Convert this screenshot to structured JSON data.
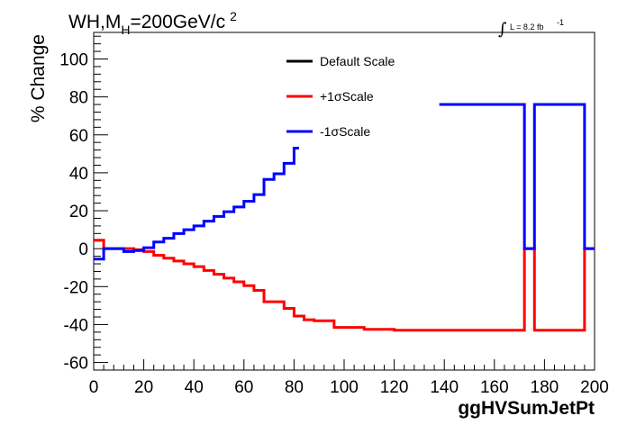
{
  "chart_data": {
    "type": "line",
    "title": {
      "prefix": "WH,M",
      "subscript": "H",
      "value": "=200GeV/c",
      "superscript": "2"
    },
    "lumi_label": "L = 8.2 fb",
    "lumi_exponent": "-1",
    "xlabel": "ggHVSumJetPt",
    "ylabel": "% Change",
    "xlim": [
      0,
      200
    ],
    "ylim": [
      -64,
      114
    ],
    "xticks": [
      0,
      20,
      40,
      60,
      80,
      100,
      120,
      140,
      160,
      180,
      200
    ],
    "yticks": [
      -60,
      -40,
      -20,
      0,
      20,
      40,
      60,
      80,
      100
    ],
    "legend_position": "top-center",
    "series": [
      {
        "name": "Default Scale",
        "color": "#000000",
        "bins": []
      },
      {
        "name": "+1σScale",
        "color": "#ff0000",
        "bins": [
          [
            0,
            4,
            4.5
          ],
          [
            4,
            8,
            0
          ],
          [
            8,
            12,
            0
          ],
          [
            12,
            16,
            0
          ],
          [
            16,
            20,
            -0.5
          ],
          [
            20,
            24,
            -1.5
          ],
          [
            24,
            28,
            -3.5
          ],
          [
            28,
            32,
            -5
          ],
          [
            32,
            36,
            -6.5
          ],
          [
            36,
            40,
            -8
          ],
          [
            40,
            44,
            -9.5
          ],
          [
            44,
            48,
            -11.5
          ],
          [
            48,
            52,
            -13.5
          ],
          [
            52,
            56,
            -15.5
          ],
          [
            56,
            60,
            -17.5
          ],
          [
            60,
            64,
            -19.5
          ],
          [
            64,
            68,
            -22
          ],
          [
            68,
            72,
            -28
          ],
          [
            72,
            76,
            -28
          ],
          [
            76,
            80,
            -31.5
          ],
          [
            80,
            84,
            -35.5
          ],
          [
            84,
            88,
            -37.5
          ],
          [
            88,
            92,
            -38
          ],
          [
            92,
            96,
            -38
          ],
          [
            96,
            100,
            -41.5
          ],
          [
            100,
            108,
            -41.5
          ],
          [
            108,
            112,
            -42.5
          ],
          [
            112,
            120,
            -42.5
          ],
          [
            120,
            172,
            -43
          ],
          [
            172,
            176,
            0
          ],
          [
            176,
            196,
            -43
          ],
          [
            196,
            200,
            0
          ]
        ]
      },
      {
        "name": "-1σScale",
        "color": "#0000ff",
        "bins": [
          [
            0,
            4,
            -5.5
          ],
          [
            4,
            8,
            0
          ],
          [
            8,
            12,
            0
          ],
          [
            12,
            16,
            -1.5
          ],
          [
            16,
            20,
            -1
          ],
          [
            20,
            24,
            0.5
          ],
          [
            24,
            28,
            3.5
          ],
          [
            28,
            32,
            5.5
          ],
          [
            32,
            36,
            8
          ],
          [
            36,
            40,
            10
          ],
          [
            40,
            44,
            12
          ],
          [
            44,
            48,
            14.5
          ],
          [
            48,
            52,
            17
          ],
          [
            52,
            56,
            19.5
          ],
          [
            56,
            60,
            22
          ],
          [
            60,
            64,
            25
          ],
          [
            64,
            68,
            28.5
          ],
          [
            68,
            72,
            36.5
          ],
          [
            72,
            76,
            39.5
          ],
          [
            76,
            80,
            45
          ],
          [
            80,
            82,
            53
          ],
          [
            138,
            172,
            76
          ],
          [
            172,
            176,
            0
          ],
          [
            176,
            196,
            76
          ],
          [
            196,
            200,
            0
          ]
        ]
      }
    ]
  }
}
